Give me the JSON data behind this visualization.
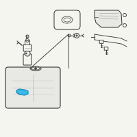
{
  "background_color": "#f5f5f0",
  "highlight_color": "#3ab8e8",
  "line_color": "#999999",
  "dark_color": "#666666",
  "darker_color": "#444444",
  "tank_color": "#e8e8e4",
  "figsize": [
    2.0,
    2.0
  ],
  "dpi": 100
}
